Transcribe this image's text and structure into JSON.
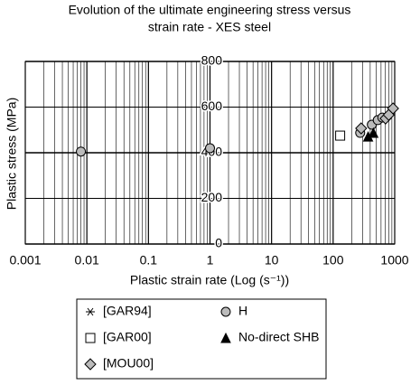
{
  "chart_data": {
    "type": "scatter",
    "title": [
      "Evolution of the ultimate  engineering stress versus",
      "strain rate - XES steel"
    ],
    "x_label": "Plastic strain rate (Log (s⁻¹))",
    "y_label": "Plastic stress (MPa)",
    "x_log": true,
    "grid": true,
    "xlim": [
      0.001,
      1000
    ],
    "xticks": [
      0.001,
      0.01,
      0.1,
      1,
      10,
      100,
      1000
    ],
    "ylim": [
      0,
      800
    ],
    "yticks": [
      0,
      200,
      400,
      600,
      800
    ],
    "series": [
      {
        "name": "[GAR94]",
        "marker": "star",
        "color": "#000000",
        "x": [],
        "values": []
      },
      {
        "name": "H",
        "marker": "circle",
        "color": "#bbbbbb",
        "x": [
          0.008,
          1,
          275,
          425,
          530,
          630
        ],
        "values": [
          405,
          420,
          487,
          523,
          543,
          554
        ]
      },
      {
        "name": "[GAR00]",
        "marker": "square",
        "color": "#ffffff",
        "x": [
          130
        ],
        "values": [
          475
        ]
      },
      {
        "name": "No-direct SHB",
        "marker": "triangle",
        "color": "#000000",
        "x": [
          370,
          450
        ],
        "values": [
          471,
          487
        ]
      },
      {
        "name": "[MOU00]",
        "marker": "diamond",
        "color": "#bbbbbb",
        "x": [
          285,
          710,
          800,
          940
        ],
        "values": [
          507,
          550,
          566,
          594
        ]
      }
    ]
  }
}
